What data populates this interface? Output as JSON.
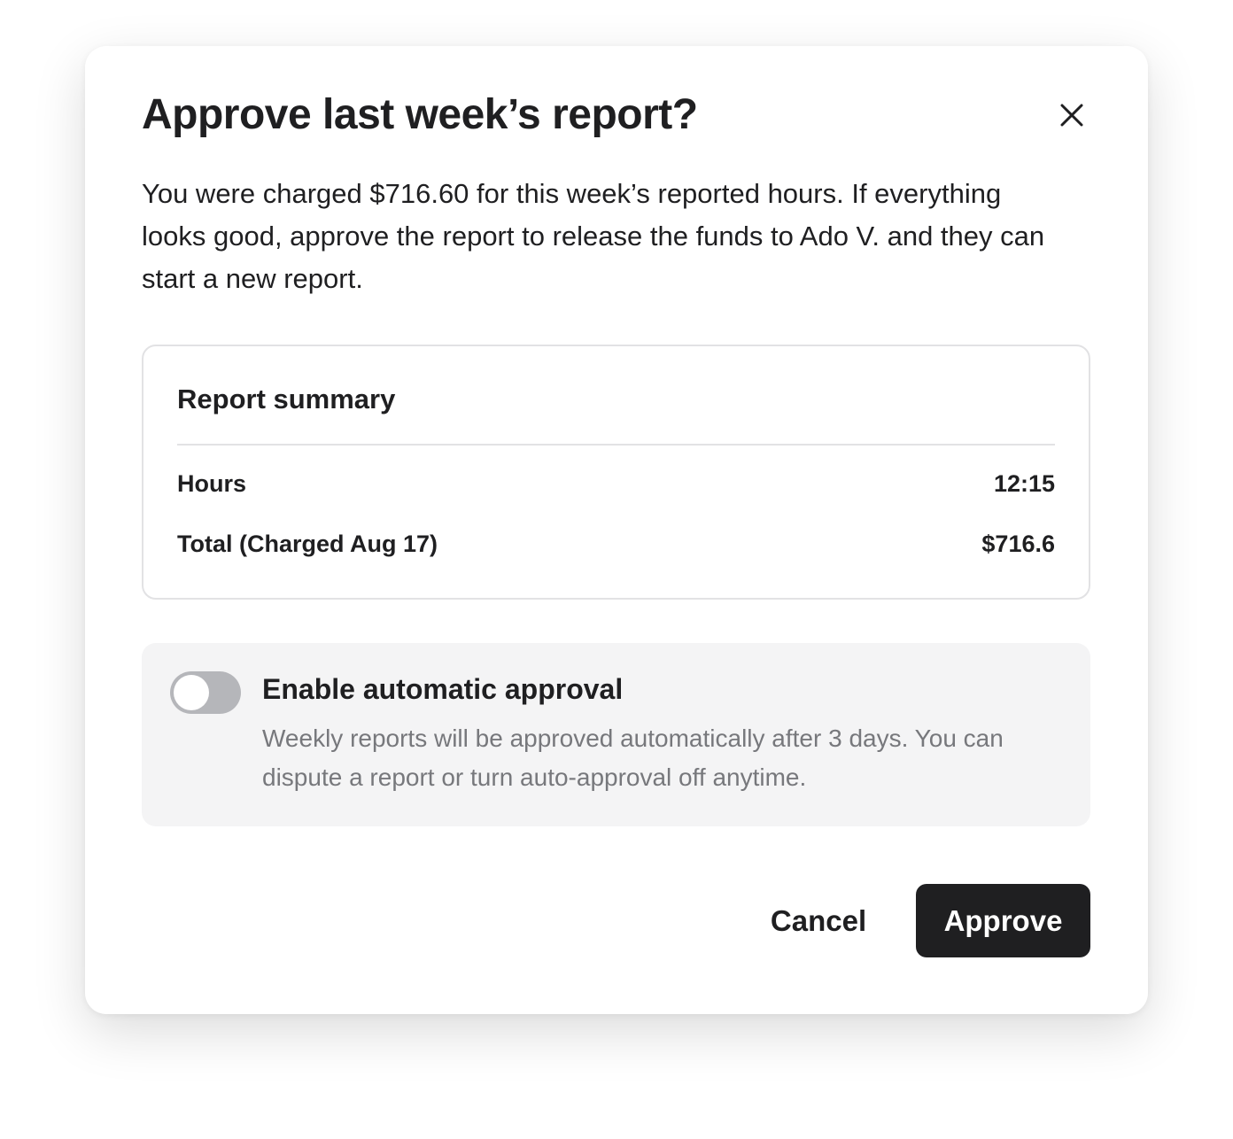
{
  "dialog": {
    "title": "Approve last week’s report?",
    "close_icon": "close-icon",
    "body": "You were charged $716.60 for this week’s reported hours. If everything looks good, approve the report to release the funds to Ado V. and they can start a new report."
  },
  "summary": {
    "title": "Report summary",
    "rows": [
      {
        "label": "Hours",
        "value": "12:15"
      },
      {
        "label": "Total (Charged Aug 17)",
        "value": "$716.6"
      }
    ]
  },
  "auto_approval": {
    "enabled": false,
    "label": "Enable automatic approval",
    "description": "Weekly reports will be approved automatically after 3 days. You can dispute a report or turn auto-approval off anytime."
  },
  "actions": {
    "cancel": "Cancel",
    "approve": "Approve"
  },
  "colors": {
    "primary_button": "#1f1f21",
    "toggle_off": "#b5b6ba",
    "panel_bg": "#f4f4f5"
  }
}
